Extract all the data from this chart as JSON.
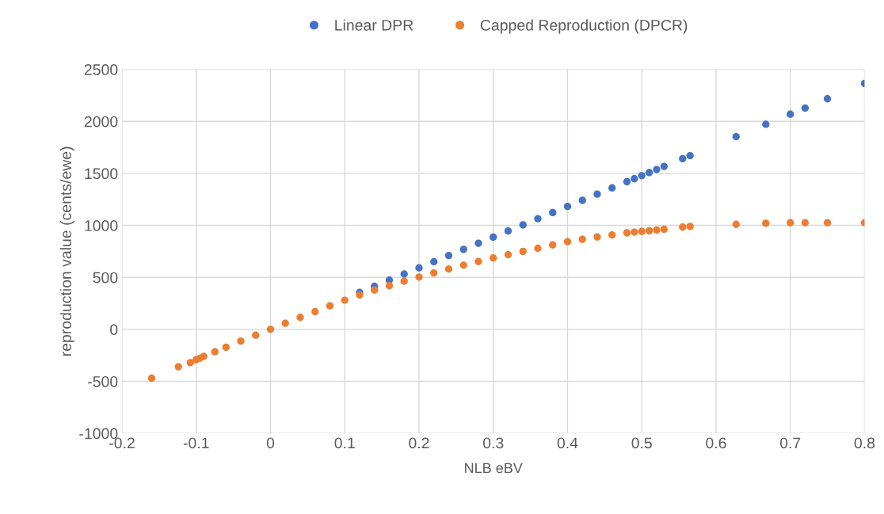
{
  "chart_data": {
    "type": "scatter",
    "xlabel": "NLB eBV",
    "ylabel": "reproduction value (cents/ewe)",
    "x": [
      -0.16,
      -0.124,
      -0.108,
      -0.1,
      -0.095,
      -0.09,
      -0.075,
      -0.06,
      -0.04,
      -0.02,
      0,
      0.02,
      0.04,
      0.06,
      0.08,
      0.1,
      0.12,
      0.14,
      0.16,
      0.18,
      0.2,
      0.22,
      0.24,
      0.26,
      0.28,
      0.3,
      0.32,
      0.34,
      0.36,
      0.38,
      0.4,
      0.42,
      0.44,
      0.46,
      0.48,
      0.49,
      0.5,
      0.51,
      0.52,
      0.53,
      0.555,
      0.565,
      0.627,
      0.667,
      0.7,
      0.72,
      0.75,
      0.8
    ],
    "series": [
      {
        "name": "Linear DPR",
        "color": "#4472c4",
        "values": [
          null,
          null,
          null,
          null,
          null,
          null,
          null,
          null,
          null,
          null,
          null,
          null,
          null,
          null,
          null,
          null,
          355,
          414,
          473,
          532,
          591,
          650,
          710,
          769,
          828,
          887,
          946,
          1005,
          1064,
          1123,
          1182,
          1241,
          1300,
          1360,
          1419,
          1448,
          1478,
          1508,
          1537,
          1567,
          1641,
          1670,
          1853,
          1972,
          2069,
          2128,
          2217,
          2365
        ]
      },
      {
        "name": "Capped Reproduction (DPCR)",
        "color": "#ed7d31",
        "values": [
          -470,
          -360,
          -320,
          -292,
          -278,
          -260,
          -216,
          -172,
          -113,
          -56,
          0,
          58,
          115,
          170,
          226,
          280,
          330,
          378,
          420,
          463,
          503,
          542,
          580,
          617,
          652,
          686,
          718,
          750,
          780,
          812,
          843,
          866,
          888,
          908,
          928,
          935,
          942,
          948,
          955,
          962,
          983,
          990,
          1010,
          1020,
          1025,
          1025,
          1025,
          1025
        ]
      }
    ],
    "xlim": [
      -0.2,
      0.8
    ],
    "xticks": [
      -0.2,
      -0.1,
      0,
      0.1,
      0.2,
      0.3,
      0.4,
      0.5,
      0.6,
      0.7,
      0.8
    ],
    "ylim": [
      -1000,
      2500
    ],
    "yticks": [
      -1000,
      -500,
      0,
      500,
      1000,
      1500,
      2000,
      2500
    ],
    "grid": true,
    "legend": "top",
    "marker": "circle"
  }
}
